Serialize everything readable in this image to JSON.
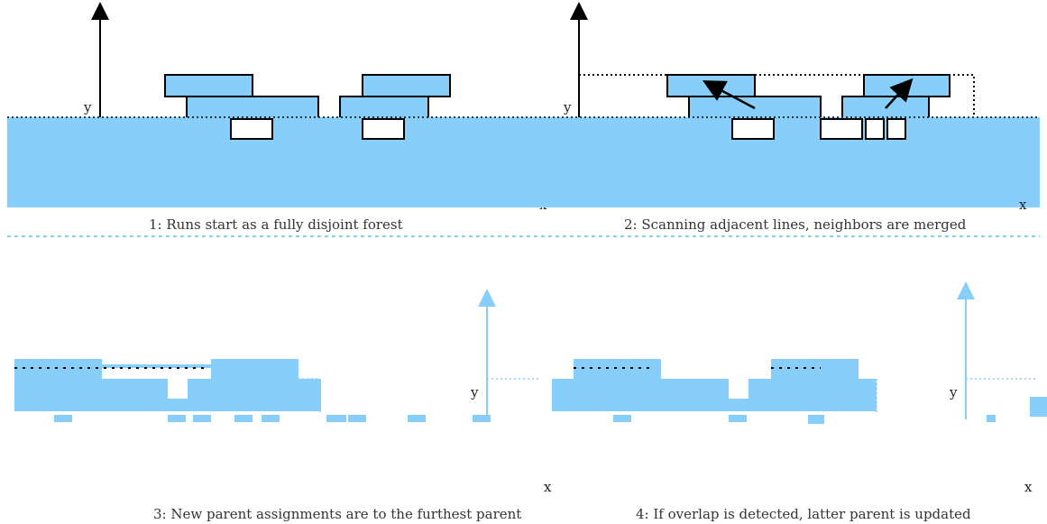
{
  "axis_labels": {
    "y": "y",
    "x": "x"
  },
  "panels": [
    {
      "id": "p1",
      "caption": "1: Runs start as a fully disjoint forest"
    },
    {
      "id": "p2",
      "caption": "2: Scanning adjacent lines, neighbors are merged"
    },
    {
      "id": "p3",
      "caption": "3: New parent assignments are to the furthest parent"
    },
    {
      "id": "p4",
      "caption": "4: If overlap is detected, latter parent is updated"
    }
  ],
  "colors": {
    "fill": "#87cefa",
    "stroke": "#000000",
    "background": "#ffffff"
  }
}
